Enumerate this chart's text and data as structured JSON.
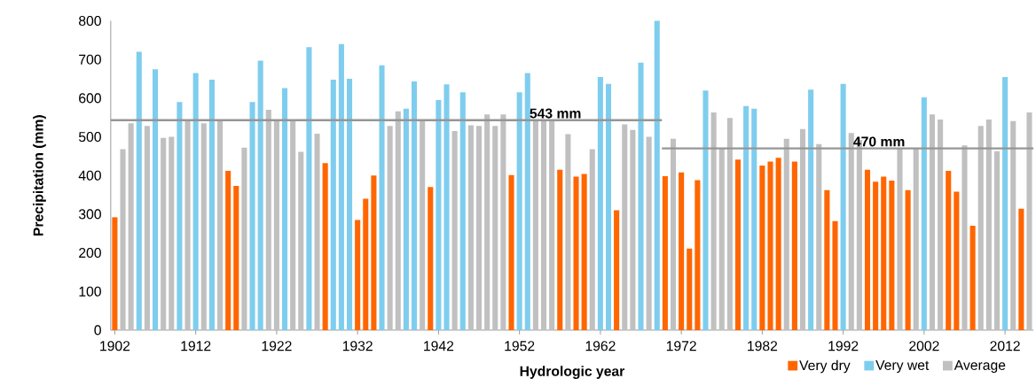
{
  "chart_data": {
    "type": "bar",
    "xlabel": "Hydrologic year",
    "ylabel": "Precipitation (mm)",
    "x": [
      1902,
      1903,
      1904,
      1905,
      1906,
      1907,
      1908,
      1909,
      1910,
      1911,
      1912,
      1913,
      1914,
      1915,
      1916,
      1917,
      1918,
      1919,
      1920,
      1921,
      1922,
      1923,
      1924,
      1925,
      1926,
      1927,
      1928,
      1929,
      1930,
      1931,
      1932,
      1933,
      1934,
      1935,
      1936,
      1937,
      1938,
      1939,
      1940,
      1941,
      1942,
      1943,
      1944,
      1945,
      1946,
      1947,
      1948,
      1949,
      1950,
      1951,
      1952,
      1953,
      1954,
      1955,
      1956,
      1957,
      1958,
      1959,
      1960,
      1961,
      1962,
      1963,
      1964,
      1965,
      1966,
      1967,
      1968,
      1969,
      1970,
      1971,
      1972,
      1973,
      1974,
      1975,
      1976,
      1977,
      1978,
      1979,
      1980,
      1981,
      1982,
      1983,
      1984,
      1985,
      1986,
      1987,
      1988,
      1989,
      1990,
      1991,
      1992,
      1993,
      1994,
      1995,
      1996,
      1997,
      1998,
      1999,
      2000,
      2001,
      2002,
      2003,
      2004,
      2005,
      2006,
      2007,
      2008,
      2009,
      2010,
      2011,
      2012,
      2013,
      2014,
      2015
    ],
    "series": [
      {
        "name": "Very dry",
        "color": "#ff6600",
        "values": [
          292,
          null,
          null,
          null,
          null,
          null,
          null,
          null,
          null,
          null,
          null,
          null,
          null,
          null,
          412,
          373,
          null,
          null,
          null,
          null,
          null,
          null,
          null,
          null,
          null,
          null,
          432,
          null,
          null,
          null,
          285,
          340,
          400,
          null,
          null,
          null,
          null,
          null,
          null,
          370,
          null,
          null,
          null,
          null,
          null,
          null,
          null,
          null,
          null,
          401,
          null,
          null,
          null,
          null,
          null,
          415,
          null,
          397,
          404,
          null,
          null,
          null,
          310,
          null,
          null,
          null,
          null,
          null,
          398,
          null,
          408,
          211,
          388,
          null,
          null,
          null,
          null,
          441,
          null,
          null,
          426,
          436,
          446,
          null,
          436,
          null,
          null,
          null,
          362,
          282,
          null,
          null,
          null,
          415,
          384,
          397,
          387,
          null,
          362,
          null,
          null,
          null,
          null,
          412,
          358,
          null,
          270,
          null,
          null,
          null,
          null,
          null,
          314,
          null
        ]
      },
      {
        "name": "Very wet",
        "color": "#7fcdee",
        "values": [
          null,
          null,
          null,
          720,
          null,
          675,
          null,
          null,
          590,
          null,
          665,
          null,
          648,
          null,
          null,
          null,
          null,
          590,
          697,
          null,
          null,
          626,
          null,
          null,
          732,
          null,
          null,
          648,
          740,
          650,
          null,
          null,
          null,
          685,
          null,
          null,
          573,
          643,
          null,
          null,
          595,
          636,
          null,
          615,
          null,
          null,
          null,
          null,
          null,
          null,
          615,
          665,
          null,
          null,
          null,
          null,
          null,
          null,
          null,
          null,
          655,
          637,
          null,
          null,
          null,
          692,
          null,
          800,
          null,
          null,
          null,
          null,
          null,
          620,
          null,
          null,
          null,
          null,
          580,
          573,
          null,
          null,
          null,
          null,
          null,
          null,
          622,
          null,
          null,
          null,
          637,
          null,
          null,
          null,
          null,
          null,
          null,
          null,
          null,
          null,
          602,
          null,
          null,
          null,
          null,
          null,
          null,
          null,
          null,
          null,
          655,
          null,
          null,
          null
        ]
      },
      {
        "name": "Average",
        "color": "#c0c0c0",
        "values": [
          null,
          468,
          535,
          null,
          528,
          null,
          497,
          500,
          null,
          545,
          null,
          535,
          null,
          545,
          null,
          null,
          472,
          null,
          null,
          570,
          545,
          null,
          545,
          461,
          null,
          508,
          null,
          null,
          null,
          null,
          null,
          null,
          null,
          null,
          528,
          566,
          null,
          null,
          545,
          null,
          null,
          null,
          515,
          null,
          530,
          528,
          558,
          528,
          558,
          null,
          null,
          null,
          545,
          545,
          545,
          null,
          507,
          null,
          null,
          468,
          null,
          null,
          null,
          532,
          518,
          null,
          500,
          null,
          null,
          495,
          null,
          null,
          null,
          null,
          563,
          470,
          549,
          null,
          null,
          null,
          null,
          null,
          null,
          495,
          null,
          520,
          null,
          481,
          null,
          null,
          null,
          510,
          492,
          null,
          null,
          null,
          null,
          470,
          null,
          470,
          null,
          558,
          545,
          null,
          null,
          478,
          null,
          528,
          545,
          463,
          null,
          541,
          null,
          563
        ]
      },
      {
        "type": "line",
        "color": "#969696",
        "x": [
          1901.5,
          1969.6
        ],
        "values": [
          543,
          543
        ]
      },
      {
        "type": "line",
        "color": "#969696",
        "x": [
          1969.6,
          2015.5
        ],
        "values": [
          470,
          470
        ]
      }
    ],
    "annotations": [
      {
        "text": "543 mm",
        "x": 1953,
        "y": 543
      },
      {
        "text": "470 mm",
        "x": 1993,
        "y": 470
      }
    ],
    "xlim": [
      1901.5,
      2015.5
    ],
    "xticks": [
      1902,
      1912,
      1922,
      1932,
      1942,
      1952,
      1962,
      1972,
      1982,
      1992,
      2002,
      2012
    ],
    "ylim": [
      0,
      800
    ],
    "yticks": [
      0,
      100,
      200,
      300,
      400,
      500,
      600,
      700,
      800
    ],
    "legend": "bottom"
  }
}
